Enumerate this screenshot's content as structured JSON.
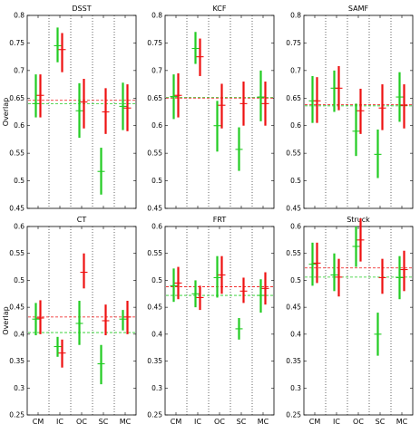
{
  "colors": {
    "green": "#22cc22",
    "red": "#ee1111",
    "frame": "#000000"
  },
  "chart_data": [
    {
      "type": "errorbar",
      "title": "DSST",
      "ylabel": "Overlap",
      "xlabel": "",
      "categories": [
        "CM",
        "IC",
        "OC",
        "SC",
        "MC"
      ],
      "ylim": [
        0.45,
        0.8
      ],
      "yticks": [
        "0.45",
        "0.5",
        "0.55",
        "0.6",
        "0.65",
        "0.7",
        "0.75",
        "0.8"
      ],
      "show_xticklabels": false,
      "series": [
        {
          "color": "green",
          "mean": [
            0.64,
            0.745,
            0.627,
            0.517,
            0.635
          ],
          "lower": [
            0.615,
            0.715,
            0.578,
            0.475,
            0.592
          ],
          "upper": [
            0.693,
            0.778,
            0.677,
            0.56,
            0.678
          ],
          "reference": 0.64
        },
        {
          "color": "red",
          "mean": [
            0.655,
            0.738,
            0.643,
            0.625,
            0.632
          ],
          "lower": [
            0.615,
            0.697,
            0.595,
            0.585,
            0.59
          ],
          "upper": [
            0.693,
            0.768,
            0.685,
            0.668,
            0.675
          ],
          "reference": 0.646
        }
      ]
    },
    {
      "type": "errorbar",
      "title": "KCF",
      "ylabel": "",
      "xlabel": "",
      "categories": [
        "CM",
        "IC",
        "OC",
        "SC",
        "MC"
      ],
      "ylim": [
        0.45,
        0.8
      ],
      "yticks": [
        "0.45",
        "0.5",
        "0.55",
        "0.6",
        "0.65",
        "0.7",
        "0.75",
        "0.8"
      ],
      "show_xticklabels": false,
      "series": [
        {
          "color": "green",
          "mean": [
            0.653,
            0.74,
            0.6,
            0.557,
            0.652
          ],
          "lower": [
            0.612,
            0.712,
            0.553,
            0.518,
            0.608
          ],
          "upper": [
            0.693,
            0.77,
            0.645,
            0.597,
            0.7
          ],
          "reference": 0.651
        },
        {
          "color": "red",
          "mean": [
            0.655,
            0.725,
            0.637,
            0.64,
            0.64
          ],
          "lower": [
            0.615,
            0.69,
            0.595,
            0.6,
            0.6
          ],
          "upper": [
            0.695,
            0.758,
            0.676,
            0.68,
            0.68
          ],
          "reference": 0.65
        }
      ]
    },
    {
      "type": "errorbar",
      "title": "SAMF",
      "ylabel": "",
      "xlabel": "",
      "categories": [
        "CM",
        "IC",
        "OC",
        "SC",
        "MC"
      ],
      "ylim": [
        0.45,
        0.8
      ],
      "yticks": [
        "0.45",
        "0.5",
        "0.55",
        "0.6",
        "0.65",
        "0.7",
        "0.75",
        "0.8"
      ],
      "show_xticklabels": false,
      "series": [
        {
          "color": "green",
          "mean": [
            0.645,
            0.668,
            0.59,
            0.548,
            0.652
          ],
          "lower": [
            0.605,
            0.625,
            0.545,
            0.505,
            0.607
          ],
          "upper": [
            0.69,
            0.7,
            0.64,
            0.593,
            0.697
          ],
          "reference": 0.636
        },
        {
          "color": "red",
          "mean": [
            0.645,
            0.668,
            0.627,
            0.632,
            0.637
          ],
          "lower": [
            0.605,
            0.628,
            0.585,
            0.592,
            0.595
          ],
          "upper": [
            0.688,
            0.708,
            0.667,
            0.675,
            0.675
          ],
          "reference": 0.638
        }
      ]
    },
    {
      "type": "errorbar",
      "title": "CT",
      "ylabel": "Overlap",
      "xlabel": "",
      "categories": [
        "CM",
        "IC",
        "OC",
        "SC",
        "MC"
      ],
      "ylim": [
        0.25,
        0.6
      ],
      "yticks": [
        "0.25",
        "0.3",
        "0.35",
        "0.4",
        "0.45",
        "0.5",
        "0.55",
        "0.6"
      ],
      "show_xticklabels": true,
      "series": [
        {
          "color": "green",
          "mean": [
            0.428,
            0.377,
            0.42,
            0.345,
            0.428
          ],
          "lower": [
            0.398,
            0.358,
            0.38,
            0.307,
            0.407
          ],
          "upper": [
            0.458,
            0.395,
            0.462,
            0.38,
            0.445
          ],
          "reference": 0.403
        },
        {
          "color": "red",
          "mean": [
            0.43,
            0.365,
            0.515,
            0.425,
            0.432
          ],
          "lower": [
            0.4,
            0.338,
            0.485,
            0.398,
            0.4
          ],
          "upper": [
            0.463,
            0.39,
            0.55,
            0.455,
            0.462
          ],
          "reference": 0.432
        }
      ]
    },
    {
      "type": "errorbar",
      "title": "FRT",
      "ylabel": "",
      "xlabel": "",
      "categories": [
        "CM",
        "IC",
        "OC",
        "SC",
        "MC"
      ],
      "ylim": [
        0.25,
        0.6
      ],
      "yticks": [
        "0.25",
        "0.3",
        "0.35",
        "0.4",
        "0.45",
        "0.5",
        "0.55",
        "0.6"
      ],
      "show_xticklabels": true,
      "series": [
        {
          "color": "green",
          "mean": [
            0.49,
            0.475,
            0.505,
            0.41,
            0.472
          ],
          "lower": [
            0.46,
            0.45,
            0.468,
            0.39,
            0.44
          ],
          "upper": [
            0.522,
            0.5,
            0.545,
            0.43,
            0.502
          ],
          "reference": 0.472
        },
        {
          "color": "red",
          "mean": [
            0.495,
            0.468,
            0.51,
            0.48,
            0.485
          ],
          "lower": [
            0.465,
            0.445,
            0.475,
            0.458,
            0.455
          ],
          "upper": [
            0.525,
            0.49,
            0.545,
            0.505,
            0.515
          ],
          "reference": 0.488
        }
      ]
    },
    {
      "type": "errorbar",
      "title": "Struck",
      "ylabel": "",
      "xlabel": "",
      "categories": [
        "CM",
        "IC",
        "OC",
        "SC",
        "MC"
      ],
      "ylim": [
        0.25,
        0.6
      ],
      "yticks": [
        "0.25",
        "0.3",
        "0.35",
        "0.4",
        "0.45",
        "0.5",
        "0.55",
        "0.6"
      ],
      "show_xticklabels": true,
      "series": [
        {
          "color": "green",
          "mean": [
            0.53,
            0.51,
            0.563,
            0.4,
            0.505
          ],
          "lower": [
            0.49,
            0.48,
            0.525,
            0.36,
            0.465
          ],
          "upper": [
            0.57,
            0.55,
            0.6,
            0.44,
            0.545
          ],
          "reference": 0.506
        },
        {
          "color": "red",
          "mean": [
            0.532,
            0.506,
            0.575,
            0.505,
            0.52
          ],
          "lower": [
            0.495,
            0.47,
            0.535,
            0.475,
            0.48
          ],
          "upper": [
            0.57,
            0.54,
            0.615,
            0.54,
            0.555
          ],
          "reference": 0.523
        }
      ]
    }
  ]
}
